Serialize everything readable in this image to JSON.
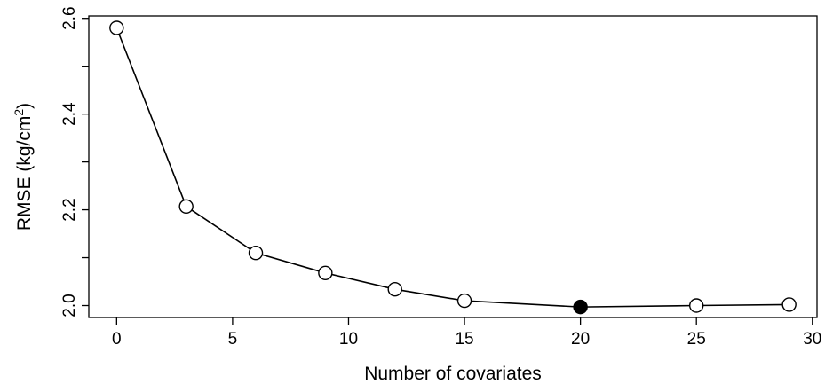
{
  "chart_data": {
    "type": "line",
    "title": "",
    "xlabel": "Number of covariates",
    "ylabel": "RMSE (kg/cm",
    "ylabel_superscript": "2",
    "ylabel_suffix": ")",
    "xlim": [
      -1.2,
      30.2
    ],
    "ylim": [
      1.975,
      2.605
    ],
    "x_ticks": [
      0,
      5,
      10,
      15,
      20,
      25,
      30
    ],
    "x_tick_labels": [
      "0",
      "5",
      "10",
      "15",
      "20",
      "25",
      "30"
    ],
    "y_ticks": [
      2.0,
      2.2,
      2.4,
      2.6
    ],
    "y_tick_labels": [
      "2.0",
      "2.2",
      "2.4",
      "2.6"
    ],
    "y_minor_ticks": [
      2.1,
      2.3,
      2.5
    ],
    "grid": false,
    "legend": "none",
    "series": [
      {
        "x": [
          0,
          3,
          6,
          9,
          12,
          15,
          20,
          25,
          29
        ],
        "y": [
          2.58,
          2.207,
          2.11,
          2.068,
          2.034,
          2.01,
          1.997,
          2.0,
          2.002
        ],
        "highlight_index": 6
      }
    ],
    "colors": {
      "line": "#000000",
      "marker_fill": "#ffffff",
      "highlight_fill": "#000000"
    }
  }
}
